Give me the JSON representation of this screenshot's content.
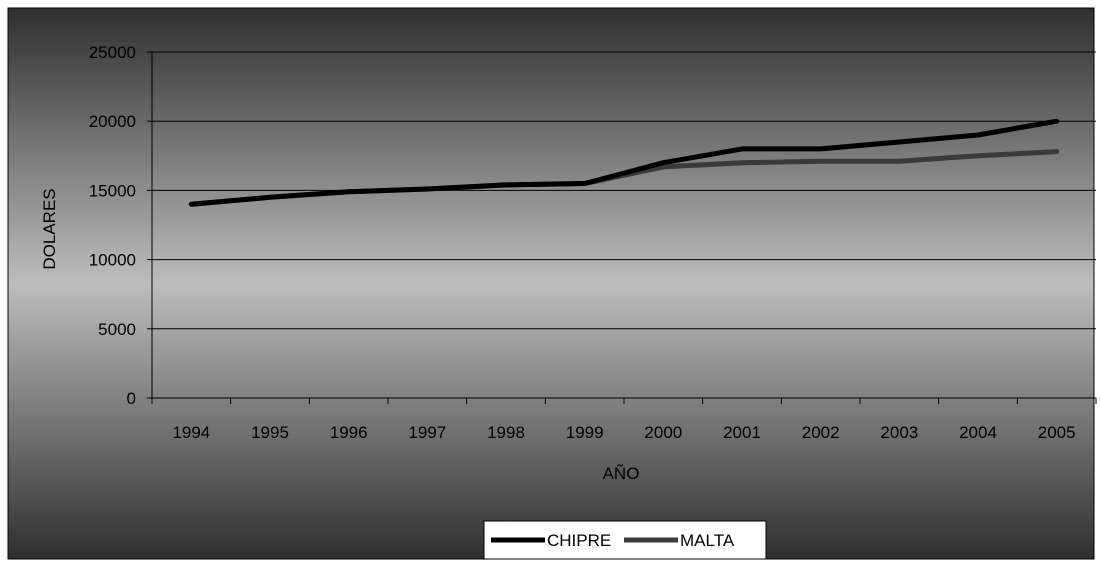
{
  "chart_data": {
    "type": "line",
    "title": "",
    "xlabel": "AÑO",
    "ylabel": "DOLARES",
    "categories": [
      "1994",
      "1995",
      "1996",
      "1997",
      "1998",
      "1999",
      "2000",
      "2001",
      "2002",
      "2003",
      "2004",
      "2005"
    ],
    "ylim": [
      0,
      25000
    ],
    "yticks": [
      0,
      5000,
      10000,
      15000,
      20000,
      25000
    ],
    "grid": true,
    "legend_position": "bottom",
    "series": [
      {
        "name": "CHIPRE",
        "color": "#000000",
        "values": [
          14000,
          14500,
          14900,
          15100,
          15400,
          15500,
          17000,
          18000,
          18000,
          18500,
          19000,
          20000
        ]
      },
      {
        "name": "MALTA",
        "color": "#3a3a3a",
        "values": [
          14000,
          14500,
          14900,
          15100,
          15400,
          15500,
          16700,
          17000,
          17100,
          17100,
          17500,
          17800
        ]
      }
    ],
    "background_colors": [
      "#2f2f2f",
      "#bdbdbd"
    ]
  }
}
